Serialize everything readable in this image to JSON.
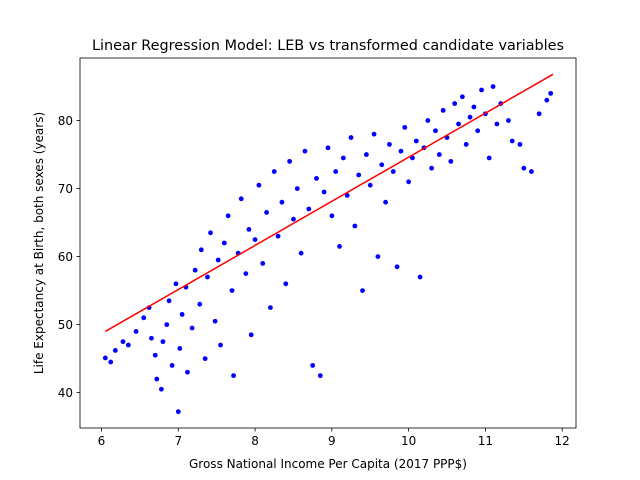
{
  "chart_data": {
    "type": "scatter",
    "title": "Linear Regression Model: LEB vs transformed candidate variables",
    "xlabel": "Gross National Income Per Capita (2017 PPP$)",
    "ylabel": "Life Expectancy at Birth, both sexes (years)",
    "xlim": [
      5.72,
      12.18
    ],
    "ylim": [
      34.8,
      89.2
    ],
    "xticks": [
      6,
      7,
      8,
      9,
      10,
      11,
      12
    ],
    "yticks": [
      40,
      50,
      60,
      70,
      80
    ],
    "grid": false,
    "legend": "none",
    "scatter_color": "#0000ff",
    "regression_color": "#ff0000",
    "regression_line": {
      "x": [
        6.05,
        11.88
      ],
      "y": [
        49.0,
        86.8
      ]
    },
    "series": [
      {
        "points": [
          [
            6.05,
            45.1
          ],
          [
            6.12,
            44.5
          ],
          [
            6.18,
            46.2
          ],
          [
            6.28,
            47.5
          ],
          [
            6.35,
            47.0
          ],
          [
            6.45,
            49.0
          ],
          [
            6.55,
            51.0
          ],
          [
            6.62,
            52.5
          ],
          [
            6.65,
            48.0
          ],
          [
            6.7,
            45.5
          ],
          [
            6.72,
            42.0
          ],
          [
            6.78,
            40.5
          ],
          [
            6.8,
            47.5
          ],
          [
            6.85,
            50.0
          ],
          [
            6.88,
            53.5
          ],
          [
            6.92,
            44.0
          ],
          [
            6.97,
            56.0
          ],
          [
            7.0,
            37.2
          ],
          [
            7.02,
            46.5
          ],
          [
            7.05,
            51.5
          ],
          [
            7.1,
            55.5
          ],
          [
            7.12,
            43.0
          ],
          [
            7.18,
            49.5
          ],
          [
            7.22,
            58.0
          ],
          [
            7.28,
            53.0
          ],
          [
            7.3,
            61.0
          ],
          [
            7.35,
            45.0
          ],
          [
            7.38,
            57.0
          ],
          [
            7.42,
            63.5
          ],
          [
            7.48,
            50.5
          ],
          [
            7.52,
            59.5
          ],
          [
            7.55,
            47.0
          ],
          [
            7.6,
            62.0
          ],
          [
            7.65,
            66.0
          ],
          [
            7.7,
            55.0
          ],
          [
            7.72,
            42.5
          ],
          [
            7.78,
            60.5
          ],
          [
            7.82,
            68.5
          ],
          [
            7.88,
            57.5
          ],
          [
            7.92,
            64.0
          ],
          [
            7.95,
            48.5
          ],
          [
            8.0,
            62.5
          ],
          [
            8.05,
            70.5
          ],
          [
            8.1,
            59.0
          ],
          [
            8.15,
            66.5
          ],
          [
            8.2,
            52.5
          ],
          [
            8.25,
            72.5
          ],
          [
            8.3,
            63.0
          ],
          [
            8.35,
            68.0
          ],
          [
            8.4,
            56.0
          ],
          [
            8.45,
            74.0
          ],
          [
            8.5,
            65.5
          ],
          [
            8.55,
            70.0
          ],
          [
            8.6,
            60.5
          ],
          [
            8.65,
            75.5
          ],
          [
            8.7,
            67.0
          ],
          [
            8.75,
            44.0
          ],
          [
            8.8,
            71.5
          ],
          [
            8.85,
            42.5
          ],
          [
            8.9,
            69.5
          ],
          [
            8.95,
            76.0
          ],
          [
            9.0,
            66.0
          ],
          [
            9.05,
            72.5
          ],
          [
            9.1,
            61.5
          ],
          [
            9.15,
            74.5
          ],
          [
            9.2,
            69.0
          ],
          [
            9.25,
            77.5
          ],
          [
            9.3,
            64.5
          ],
          [
            9.35,
            72.0
          ],
          [
            9.4,
            55.0
          ],
          [
            9.45,
            75.0
          ],
          [
            9.5,
            70.5
          ],
          [
            9.55,
            78.0
          ],
          [
            9.6,
            60.0
          ],
          [
            9.65,
            73.5
          ],
          [
            9.7,
            68.0
          ],
          [
            9.75,
            76.5
          ],
          [
            9.8,
            72.5
          ],
          [
            9.85,
            58.5
          ],
          [
            9.9,
            75.5
          ],
          [
            9.95,
            79.0
          ],
          [
            10.0,
            71.0
          ],
          [
            10.05,
            74.5
          ],
          [
            10.1,
            77.0
          ],
          [
            10.15,
            57.0
          ],
          [
            10.2,
            76.0
          ],
          [
            10.25,
            80.0
          ],
          [
            10.3,
            73.0
          ],
          [
            10.35,
            78.5
          ],
          [
            10.4,
            75.0
          ],
          [
            10.45,
            81.5
          ],
          [
            10.5,
            77.5
          ],
          [
            10.55,
            74.0
          ],
          [
            10.6,
            82.5
          ],
          [
            10.65,
            79.5
          ],
          [
            10.7,
            83.5
          ],
          [
            10.75,
            76.5
          ],
          [
            10.8,
            80.5
          ],
          [
            10.85,
            82.0
          ],
          [
            10.9,
            78.5
          ],
          [
            10.95,
            84.5
          ],
          [
            11.0,
            81.0
          ],
          [
            11.05,
            74.5
          ],
          [
            11.1,
            85.0
          ],
          [
            11.15,
            79.5
          ],
          [
            11.2,
            82.5
          ],
          [
            11.3,
            80.0
          ],
          [
            11.35,
            77.0
          ],
          [
            11.45,
            76.5
          ],
          [
            11.5,
            73.0
          ],
          [
            11.6,
            72.5
          ],
          [
            11.7,
            81.0
          ],
          [
            11.8,
            83.0
          ],
          [
            11.85,
            84.0
          ]
        ]
      }
    ]
  }
}
